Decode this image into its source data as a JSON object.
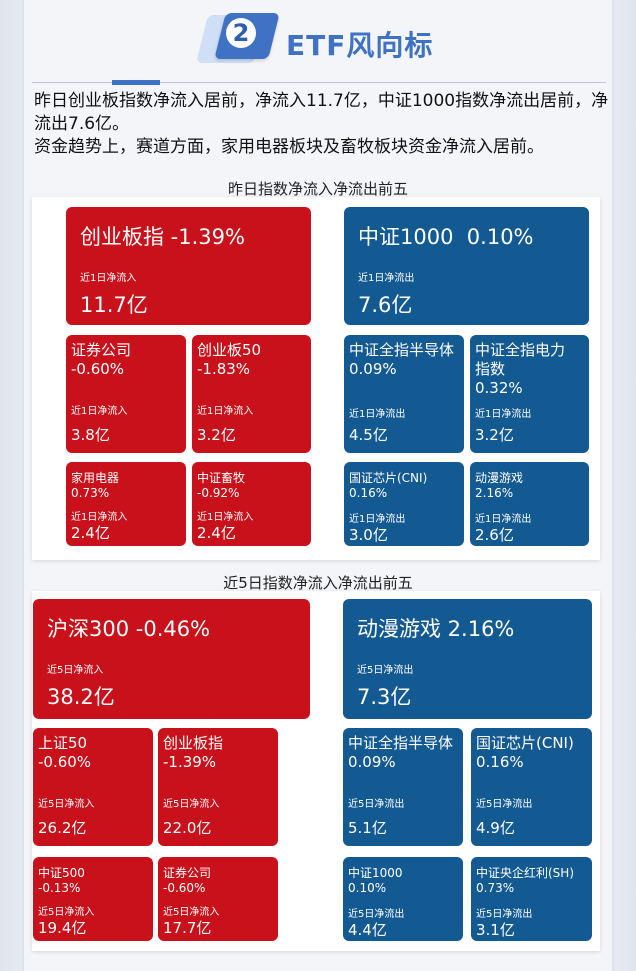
{
  "header": {
    "number": "2",
    "title": "ETF风向标"
  },
  "intro": {
    "line1": "昨日创业板指数净流入居前，净流入11.7亿，中证1000指数净流出居前，净流出7.6亿。",
    "line2": "资金趋势上，赛道方面，家用电器板块及畜牧板块资金净流入居前。"
  },
  "colors": {
    "inflow": "#c8111a",
    "outflow": "#145a92",
    "accent": "#3f72c2"
  },
  "section1": {
    "title": "昨日指数净流入净流出前五",
    "inflow": [
      {
        "name": "创业板指 -1.39%",
        "flow_label": "近1日净流入",
        "amount": "11.7亿"
      },
      {
        "name": "证券公司\n-0.60%",
        "flow_label": "近1日净流入",
        "amount": "3.8亿"
      },
      {
        "name": "创业板50\n-1.83%",
        "flow_label": "近1日净流入",
        "amount": "3.2亿"
      },
      {
        "name": "家用电器\n0.73%",
        "flow_label": "近1日净流入",
        "amount": "2.4亿"
      },
      {
        "name": "中证畜牧\n-0.92%",
        "flow_label": "近1日净流入",
        "amount": "2.4亿"
      }
    ],
    "outflow": [
      {
        "name": "中证1000  0.10%",
        "flow_label": "近1日净流出",
        "amount": "7.6亿"
      },
      {
        "name": "中证全指半导体\n0.09%",
        "flow_label": "近1日净流出",
        "amount": "4.5亿"
      },
      {
        "name": "中证全指电力\n指数\n0.32%",
        "flow_label": "近1日净流出",
        "amount": "3.2亿"
      },
      {
        "name": "国证芯片(CNI)\n0.16%",
        "flow_label": "近1日净流出",
        "amount": "3.0亿"
      },
      {
        "name": "动漫游戏\n2.16%",
        "flow_label": "近1日净流出",
        "amount": "2.6亿"
      }
    ]
  },
  "section2": {
    "title": "近5日指数净流入净流出前五",
    "inflow": [
      {
        "name": "沪深300 -0.46%",
        "flow_label": "近5日净流入",
        "amount": "38.2亿"
      },
      {
        "name": "上证50\n-0.60%",
        "flow_label": "近5日净流入",
        "amount": "26.2亿"
      },
      {
        "name": "创业板指\n-1.39%",
        "flow_label": "近5日净流入",
        "amount": "22.0亿"
      },
      {
        "name": "中证500\n-0.13%",
        "flow_label": "近5日净流入",
        "amount": "19.4亿"
      },
      {
        "name": "证券公司\n-0.60%",
        "flow_label": "近5日净流入",
        "amount": "17.7亿"
      }
    ],
    "outflow": [
      {
        "name": "动漫游戏 2.16%",
        "flow_label": "近5日净流出",
        "amount": "7.3亿"
      },
      {
        "name": "中证全指半导体\n0.09%",
        "flow_label": "近5日净流出",
        "amount": "5.1亿"
      },
      {
        "name": "国证芯片(CNI)\n0.16%",
        "flow_label": "近5日净流出",
        "amount": "4.9亿"
      },
      {
        "name": "中证1000\n0.10%",
        "flow_label": "近5日净流出",
        "amount": "4.4亿"
      },
      {
        "name": "中证央企红利(SH)\n0.73%",
        "flow_label": "近5日净流出",
        "amount": "3.1亿"
      }
    ]
  }
}
